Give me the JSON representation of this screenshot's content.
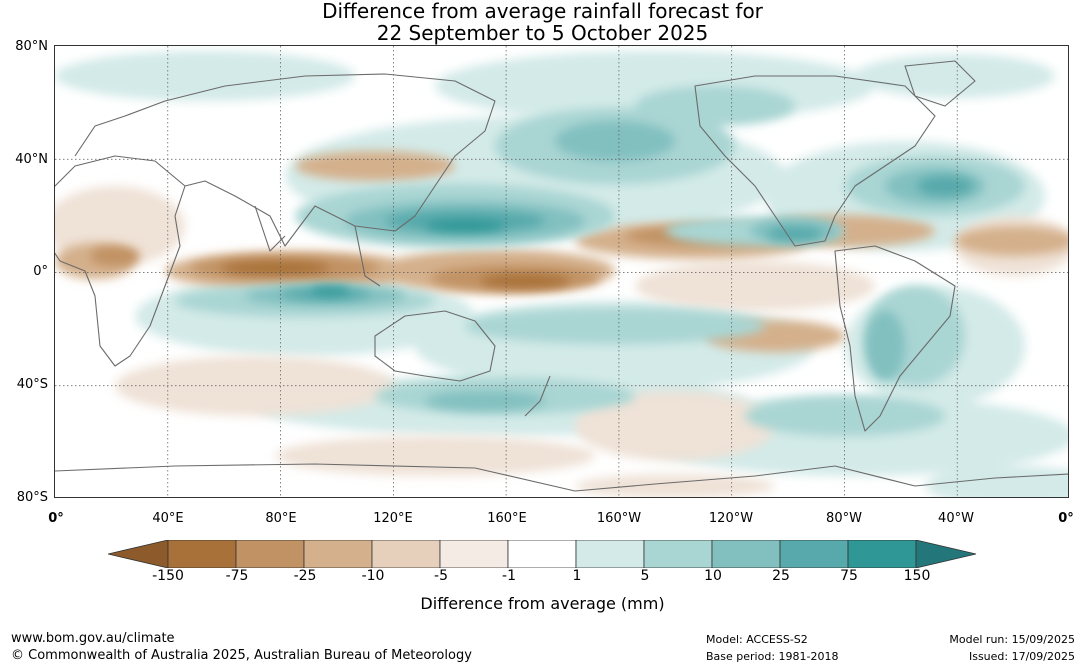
{
  "title": {
    "line1": "Difference from average rainfall forecast for",
    "line2": "22 September to 5 October 2025"
  },
  "lat_labels": [
    "80°N",
    "40°N",
    "0°",
    "40°S",
    "80°S"
  ],
  "lon_labels": [
    "0°",
    "40°E",
    "80°E",
    "120°E",
    "160°E",
    "160°W",
    "120°W",
    "80°W",
    "40°W",
    "0°"
  ],
  "colorbar": {
    "ticks": [
      "-150",
      "-75",
      "-25",
      "-10",
      "-5",
      "-1",
      "1",
      "5",
      "10",
      "25",
      "75",
      "150"
    ],
    "colors": [
      "#8c5a2b",
      "#a87139",
      "#c19263",
      "#d4b08c",
      "#e6d0bc",
      "#f4ebe4",
      "#ffffff",
      "#d3eae8",
      "#a9d5d3",
      "#82c0c0",
      "#57a9ab",
      "#2f9796",
      "#23777a"
    ],
    "label": "Difference from average (mm)"
  },
  "footer": {
    "url": "www.bom.gov.au/climate",
    "copyright": "© Commonwealth of Australia 2025, Australian Bureau of Meteorology",
    "model": "Model: ACCESS-S2",
    "base_period": "Base period: 1981-2018",
    "model_run": "Model run: 15/09/2025",
    "issued": "Issued: 17/09/2025"
  }
}
